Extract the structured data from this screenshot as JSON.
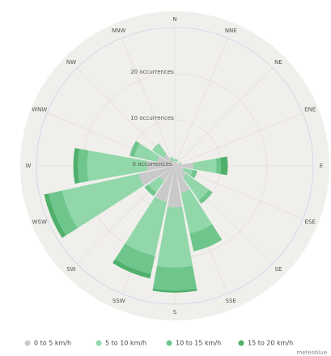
{
  "chart_data": {
    "type": "windrose",
    "categories": [
      "N",
      "NNE",
      "NE",
      "ENE",
      "E",
      "ESE",
      "SE",
      "SSE",
      "S",
      "SSW",
      "SW",
      "WSW",
      "W",
      "WNW",
      "NW",
      "NNW"
    ],
    "series": [
      {
        "name": "0 to 5 km/h",
        "color": "#c9c9c9",
        "values": [
          1,
          1,
          0.5,
          1,
          4,
          2,
          3,
          6,
          9,
          8,
          4,
          8,
          6,
          4,
          3,
          1
        ]
      },
      {
        "name": "5 to 10 km/h",
        "color": "#91d7aa",
        "values": [
          0.5,
          0.5,
          0,
          0.5,
          5,
          2,
          6,
          9,
          13,
          12,
          3,
          17,
          13,
          5,
          3,
          1
        ]
      },
      {
        "name": "10 to 15 km/h",
        "color": "#6fc68d",
        "values": [
          0,
          0,
          0,
          0,
          1,
          1,
          1,
          4,
          5,
          4,
          1,
          3,
          2,
          1,
          0,
          0
        ]
      },
      {
        "name": "15 to 20 km/h",
        "color": "#4fb06c",
        "values": [
          0,
          0,
          0,
          0,
          1.5,
          0,
          0,
          0,
          0.5,
          1,
          0,
          1,
          1,
          0,
          0,
          0
        ]
      }
    ],
    "ylim": [
      0,
      30
    ],
    "yticks": [
      {
        "value": 0,
        "label": "0 occurrences"
      },
      {
        "value": 10,
        "label": "10 occurrences"
      },
      {
        "value": 20,
        "label": "20 occurrences"
      }
    ],
    "grid": true,
    "credit": "meteoblue"
  }
}
